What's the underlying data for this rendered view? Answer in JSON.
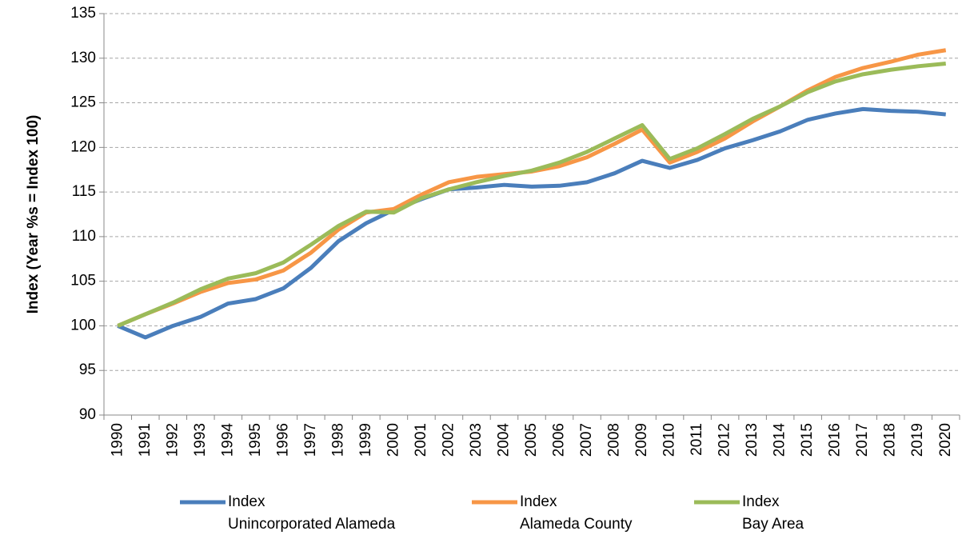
{
  "chart_data": {
    "type": "line",
    "y_label": "Index (Year %s = Index 100)",
    "categories": [
      "1990",
      "1991",
      "1992",
      "1993",
      "1994",
      "1995",
      "1996",
      "1997",
      "1998",
      "1999",
      "2000",
      "2001",
      "2002",
      "2003",
      "2004",
      "2005",
      "2006",
      "2007",
      "2008",
      "2009",
      "2010",
      "2011",
      "2012",
      "2013",
      "2014",
      "2015",
      "2016",
      "2017",
      "2018",
      "2019",
      "2020"
    ],
    "series": [
      {
        "name": "Index\nUnincorporated Alameda",
        "color": "#4a7ebb",
        "values": [
          100,
          98.7,
          100,
          101,
          102.5,
          103,
          104.2,
          106.5,
          109.5,
          111.5,
          113,
          114.2,
          115.3,
          115.5,
          115.8,
          115.6,
          115.7,
          116.1,
          117.1,
          118.5,
          117.7,
          118.6,
          119.9,
          120.8,
          121.8,
          123.1,
          123.8,
          124.3,
          124.1,
          124.0,
          123.7
        ]
      },
      {
        "name": "Index\nAlameda County",
        "color": "#f79646",
        "values": [
          100,
          101.3,
          102.5,
          103.8,
          104.8,
          105.2,
          106.2,
          108.2,
          110.8,
          112.7,
          113.1,
          114.7,
          116.1,
          116.7,
          117.0,
          117.3,
          117.9,
          118.9,
          120.4,
          122.0,
          118.3,
          119.5,
          121.0,
          122.9,
          124.6,
          126.4,
          127.9,
          128.9,
          129.6,
          130.4,
          130.9
        ]
      },
      {
        "name": "Index\nBay Area",
        "color": "#9bbb59",
        "values": [
          100,
          101.3,
          102.6,
          104.1,
          105.3,
          105.9,
          107.1,
          109.1,
          111.2,
          112.8,
          112.7,
          114.3,
          115.3,
          116.1,
          116.8,
          117.4,
          118.3,
          119.5,
          121.0,
          122.5,
          118.7,
          119.9,
          121.5,
          123.2,
          124.6,
          126.2,
          127.4,
          128.2,
          128.7,
          129.1,
          129.4
        ]
      }
    ],
    "ylim": [
      90,
      135
    ],
    "yticks": [
      90,
      95,
      100,
      105,
      110,
      115,
      120,
      125,
      130,
      135
    ],
    "grid": true,
    "legend": "bottom"
  }
}
